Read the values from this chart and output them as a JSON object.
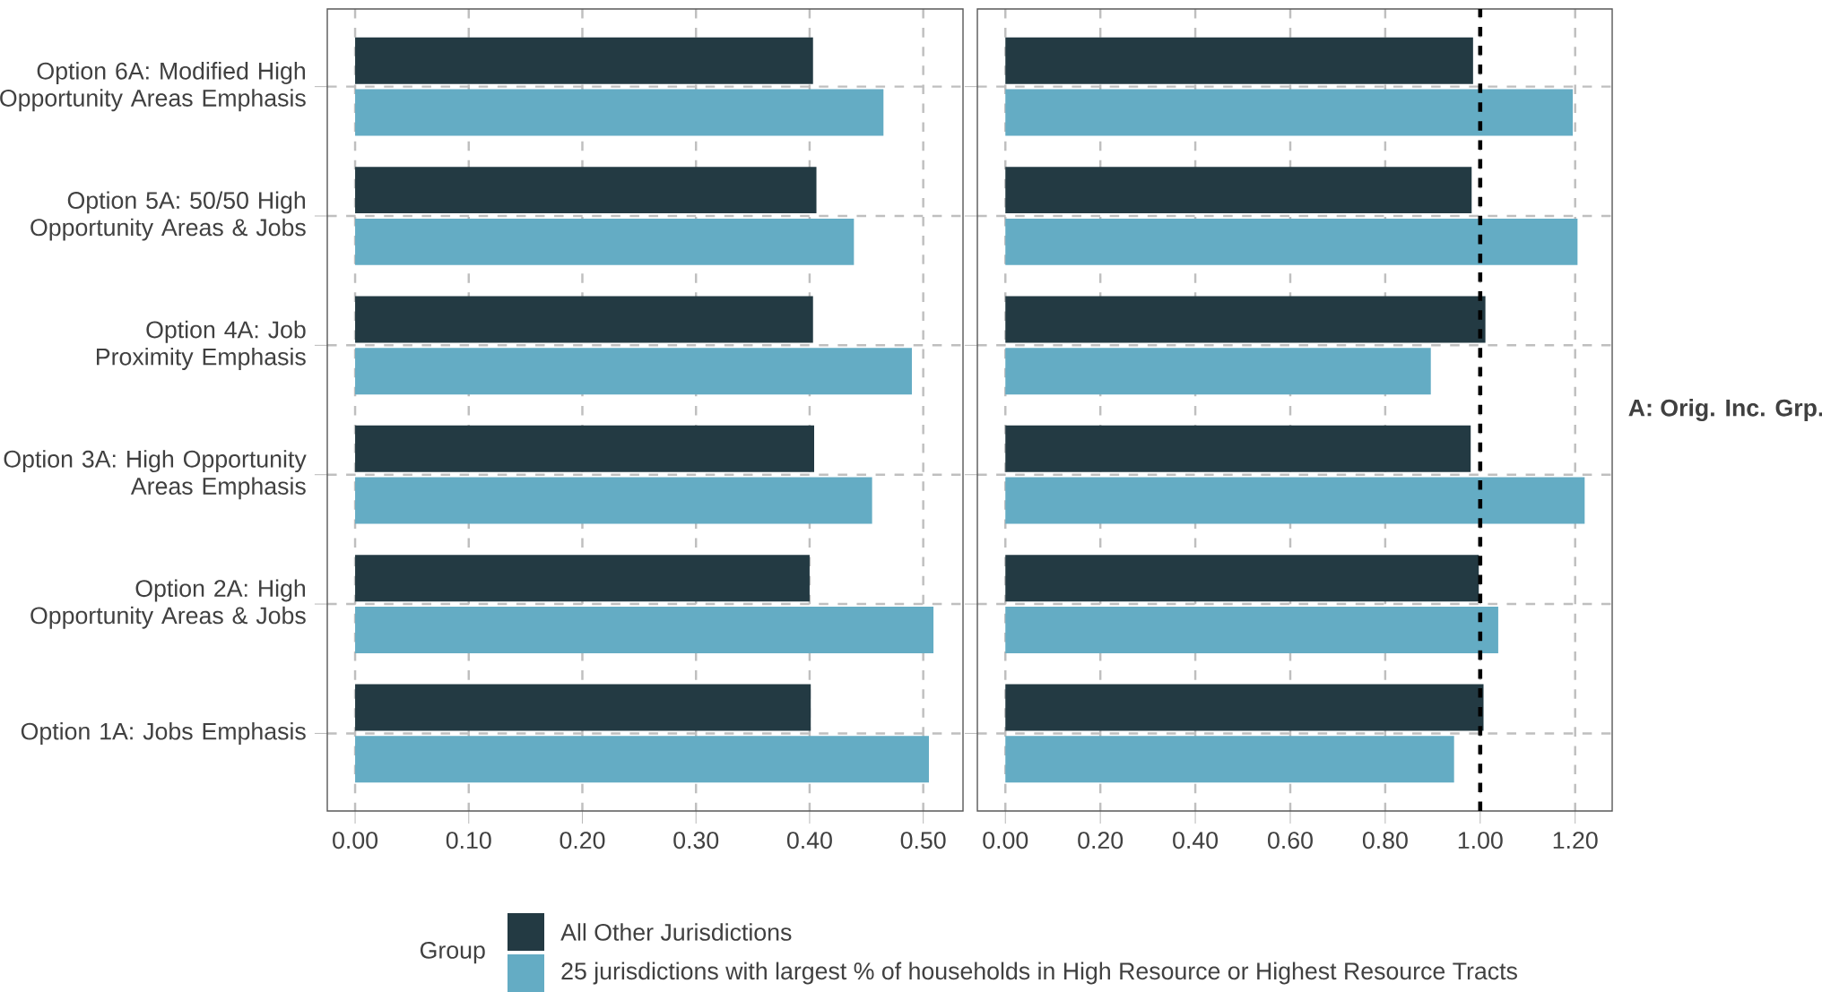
{
  "chart_data": [
    {
      "type": "bar",
      "orientation": "horizontal",
      "categories": [
        "Option 6A: Modified High Opportunity Areas Emphasis",
        "Option 5A: 50/50 High Opportunity Areas & Jobs",
        "Option 4A: Job Proximity Emphasis",
        "Option 3A: High Opportunity Areas Emphasis",
        "Option 2A: High Opportunity Areas & Jobs",
        "Option 1A: Jobs Emphasis"
      ],
      "series": [
        {
          "name": "All Other Jurisdictions",
          "color": "#233a43",
          "values": [
            0.403,
            0.406,
            0.403,
            0.404,
            0.4,
            0.401
          ]
        },
        {
          "name": "25 jurisdictions with largest % of households in High Resource or Highest Resource Tracts",
          "color": "#64acc4",
          "values": [
            0.465,
            0.439,
            0.49,
            0.455,
            0.509,
            0.505
          ]
        }
      ],
      "xlim": [
        -0.0245,
        0.535
      ],
      "xticks": [
        {
          "value": 0,
          "label": "0.00"
        },
        {
          "value": 0.1,
          "label": "0.10"
        },
        {
          "value": 0.2,
          "label": "0.20"
        },
        {
          "value": 0.3,
          "label": "0.30"
        },
        {
          "value": 0.4,
          "label": "0.40"
        },
        {
          "value": 0.5,
          "label": "0.50"
        }
      ],
      "grid": true,
      "legend": "bottom",
      "legend_title": "Group"
    },
    {
      "type": "bar",
      "orientation": "horizontal",
      "categories": [
        null,
        null,
        null,
        null,
        null,
        null
      ],
      "tick_labels": "x",
      "series": [
        {
          "color": "#233a43",
          "values": [
            0.985,
            0.982,
            1.011,
            0.98,
            0.997,
            1.007
          ]
        },
        {
          "color": "#64acc4",
          "values": [
            1.195,
            1.205,
            0.896,
            1.22,
            1.038,
            0.945
          ]
        }
      ],
      "xlim": [
        -0.059,
        1.278
      ],
      "xticks": [
        {
          "value": 0,
          "label": "0.00"
        },
        {
          "value": 0.2,
          "label": "0.20"
        },
        {
          "value": 0.4,
          "label": "0.40"
        },
        {
          "value": 0.6,
          "label": "0.60"
        },
        {
          "value": 0.8,
          "label": "0.80"
        },
        {
          "value": 1.0,
          "label": "1.00"
        },
        {
          "value": 1.2,
          "label": "1.20"
        }
      ],
      "grid": true,
      "ref_lines": [
        {
          "axis": "x",
          "value": 1.0,
          "color": "#000000",
          "line_style": "dashed"
        }
      ],
      "annotations": [
        "A: Orig. Inc. Grp."
      ]
    }
  ]
}
